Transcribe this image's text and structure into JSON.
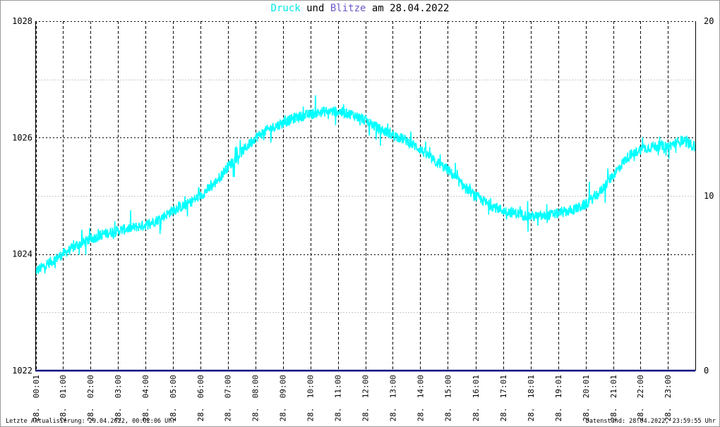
{
  "title": {
    "druck": "Druck",
    "und": " und ",
    "blitze": "Blitze",
    "rest": " am 28.04.2022"
  },
  "footer": {
    "left": "Letzte Aktualisierung: 29.04.2022, 00:02:06 Uhr",
    "right": "Datenstand: 28.04.2022, 23:59:55 Uhr"
  },
  "colors": {
    "pressure": "#00ffff",
    "lightning": "#000080",
    "title_blitze": "#6a5acd",
    "grid": "#000000",
    "minor_grid": "#c0c0c0"
  },
  "chart_data": {
    "type": "line",
    "title": "Druck und Blitze am 28.04.2022",
    "y_left": {
      "ticks": [
        "1022",
        "1024",
        "1026",
        "1028"
      ],
      "range": [
        1022,
        1028
      ]
    },
    "y_right": {
      "ticks": [
        "0",
        "10",
        "20"
      ],
      "range": [
        0,
        20
      ]
    },
    "x_range_hours": [
      0,
      24
    ],
    "x_ticks": [
      "28. 00:01",
      "28. 01:00",
      "28. 02:00",
      "28. 03:00",
      "28. 04:00",
      "28. 05:00",
      "28. 06:00",
      "28. 07:00",
      "28. 08:00",
      "28. 09:00",
      "28. 10:00",
      "28. 11:00",
      "28. 12:00",
      "28. 13:00",
      "28. 14:00",
      "28. 15:00",
      "28. 16:01",
      "28. 17:01",
      "28. 18:01",
      "28. 19:01",
      "28. 20:01",
      "28. 21:01",
      "28. 22:00",
      "28. 23:00"
    ],
    "x_tick_hours": [
      0.02,
      1,
      2,
      3,
      4,
      5,
      6,
      7,
      8,
      9,
      10,
      11,
      12,
      13,
      14,
      15,
      16.02,
      17.02,
      18.02,
      19.02,
      20.02,
      21.02,
      22,
      23
    ],
    "grid": true,
    "series": [
      {
        "name": "Druck",
        "axis": "left",
        "hours": [
          0,
          0.5,
          1,
          1.5,
          2,
          2.5,
          3,
          3.5,
          4,
          4.5,
          5,
          5.5,
          6,
          6.5,
          7,
          7.5,
          8,
          8.5,
          9,
          9.5,
          10,
          10.5,
          11,
          11.5,
          12,
          12.5,
          13,
          13.5,
          14,
          14.5,
          15,
          15.5,
          16,
          16.5,
          17,
          17.5,
          18,
          18.5,
          19,
          19.5,
          20,
          20.5,
          21,
          21.5,
          22,
          22.5,
          23,
          23.5,
          24
        ],
        "values": [
          1023.7,
          1023.85,
          1024.0,
          1024.15,
          1024.25,
          1024.35,
          1024.4,
          1024.45,
          1024.5,
          1024.6,
          1024.75,
          1024.85,
          1025.0,
          1025.2,
          1025.5,
          1025.75,
          1026.0,
          1026.15,
          1026.25,
          1026.35,
          1026.4,
          1026.45,
          1026.45,
          1026.4,
          1026.3,
          1026.15,
          1026.05,
          1025.95,
          1025.8,
          1025.6,
          1025.45,
          1025.2,
          1025.0,
          1024.85,
          1024.75,
          1024.7,
          1024.65,
          1024.65,
          1024.7,
          1024.75,
          1024.85,
          1025.05,
          1025.35,
          1025.65,
          1025.8,
          1025.85,
          1025.85,
          1025.95,
          1025.85
        ],
        "noise": 0.09
      },
      {
        "name": "Blitze",
        "axis": "right",
        "hours": [
          0,
          24
        ],
        "values": [
          0,
          0
        ]
      }
    ]
  }
}
